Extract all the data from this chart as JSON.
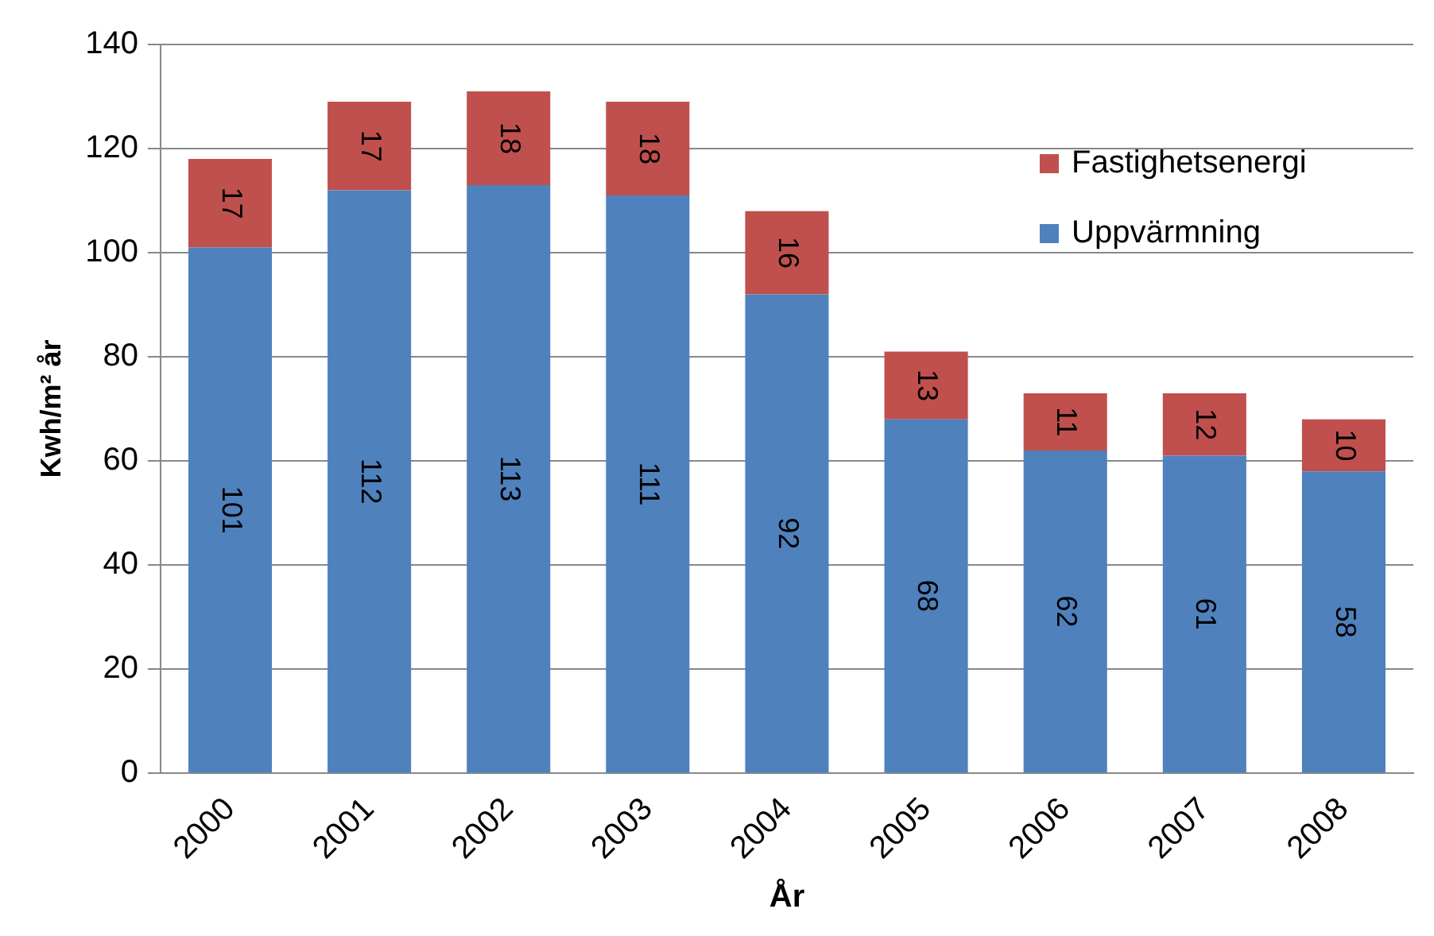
{
  "chart_data": {
    "type": "bar",
    "stacked": true,
    "xlabel": "År",
    "ylabel": "Kwh/m² år",
    "categories": [
      "2000",
      "2001",
      "2002",
      "2003",
      "2004",
      "2005",
      "2006",
      "2007",
      "2008"
    ],
    "series": [
      {
        "name": "Uppvärmning",
        "color": "#4f81bd",
        "values": [
          101,
          112,
          113,
          111,
          92,
          68,
          62,
          61,
          58
        ]
      },
      {
        "name": "Fastighetsenergi",
        "color": "#c0504d",
        "values": [
          17,
          17,
          18,
          18,
          16,
          13,
          11,
          12,
          10
        ]
      }
    ],
    "ylim": [
      0,
      140
    ],
    "yticks": [
      0,
      20,
      40,
      60,
      80,
      100,
      120,
      140
    ],
    "grid": "y",
    "legend": "top right",
    "data_labels": true
  }
}
